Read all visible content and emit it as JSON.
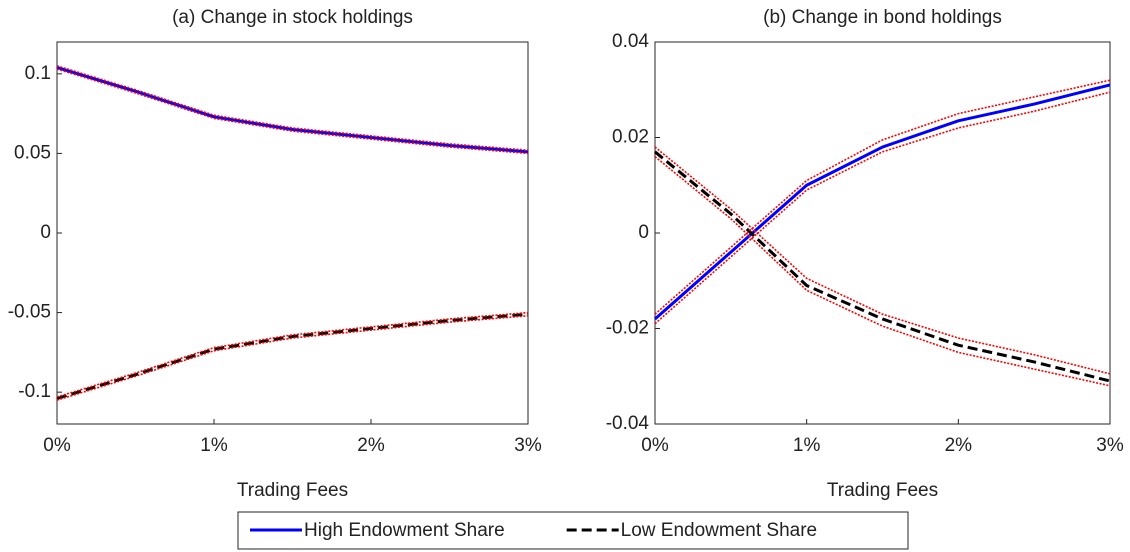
{
  "chart_data": [
    {
      "type": "line",
      "title": "(a) Change in stock holdings",
      "xlabel": "Trading Fees",
      "x": [
        0,
        0.5,
        1,
        1.5,
        2,
        2.5,
        3
      ],
      "xlim": [
        0,
        3
      ],
      "xticks": [
        {
          "value": 0,
          "label": "0%"
        },
        {
          "value": 1,
          "label": "1%"
        },
        {
          "value": 2,
          "label": "2%"
        },
        {
          "value": 3,
          "label": "3%"
        }
      ],
      "ylim": [
        -0.12,
        0.12
      ],
      "yticks": [
        -0.1,
        -0.05,
        0,
        0.05,
        0.1
      ],
      "series": [
        {
          "name": "High Endowment Share",
          "color": "#0000ff",
          "linestyle": "solid",
          "values": [
            0.104,
            0.089,
            0.073,
            0.065,
            0.06,
            0.055,
            0.051
          ]
        },
        {
          "name": "Low Endowment Share",
          "color": "#000000",
          "linestyle": "dashed",
          "values": [
            -0.104,
            -0.089,
            -0.073,
            -0.065,
            -0.06,
            -0.055,
            -0.051
          ]
        },
        {
          "color": "#ff0000",
          "linestyle": "dotted",
          "values": [
            0.105,
            0.09,
            0.074,
            0.066,
            0.061,
            0.056,
            0.052
          ]
        },
        {
          "color": "#ff0000",
          "linestyle": "dotted",
          "values": [
            0.103,
            0.088,
            0.072,
            0.064,
            0.059,
            0.054,
            0.05
          ]
        },
        {
          "color": "#ff0000",
          "linestyle": "dotted",
          "values": [
            -0.103,
            -0.088,
            -0.072,
            -0.064,
            -0.059,
            -0.054,
            -0.05
          ]
        },
        {
          "color": "#ff0000",
          "linestyle": "dotted",
          "values": [
            -0.105,
            -0.09,
            -0.074,
            -0.066,
            -0.061,
            -0.056,
            -0.052
          ]
        }
      ]
    },
    {
      "type": "line",
      "title": "(b) Change in bond holdings",
      "xlabel": "Trading Fees",
      "x": [
        0,
        0.5,
        1,
        1.5,
        2,
        2.5,
        3
      ],
      "xlim": [
        0,
        3
      ],
      "xticks": [
        {
          "value": 0,
          "label": "0%"
        },
        {
          "value": 1,
          "label": "1%"
        },
        {
          "value": 2,
          "label": "2%"
        },
        {
          "value": 3,
          "label": "3%"
        }
      ],
      "ylim": [
        -0.04,
        0.04
      ],
      "yticks": [
        -0.04,
        -0.02,
        0,
        0.02,
        0.04
      ],
      "series": [
        {
          "name": "High Endowment Share",
          "color": "#0000ff",
          "linestyle": "solid",
          "values": [
            -0.018,
            -0.004,
            0.01,
            0.018,
            0.0235,
            0.027,
            0.031
          ]
        },
        {
          "name": "Low Endowment Share",
          "color": "#000000",
          "linestyle": "dashed",
          "values": [
            0.017,
            0.004,
            -0.011,
            -0.018,
            -0.0235,
            -0.027,
            -0.031
          ]
        },
        {
          "color": "#ff0000",
          "linestyle": "dotted",
          "values": [
            -0.017,
            -0.003,
            0.011,
            0.0195,
            0.025,
            0.0285,
            0.032
          ]
        },
        {
          "color": "#ff0000",
          "linestyle": "dotted",
          "values": [
            -0.019,
            -0.005,
            0.009,
            0.017,
            0.022,
            0.0255,
            0.0295
          ]
        },
        {
          "color": "#ff0000",
          "linestyle": "dotted",
          "values": [
            0.018,
            0.005,
            -0.0095,
            -0.017,
            -0.022,
            -0.0255,
            -0.0295
          ]
        },
        {
          "color": "#ff0000",
          "linestyle": "dotted",
          "values": [
            0.016,
            0.003,
            -0.012,
            -0.0195,
            -0.025,
            -0.0285,
            -0.032
          ]
        }
      ]
    }
  ]
}
